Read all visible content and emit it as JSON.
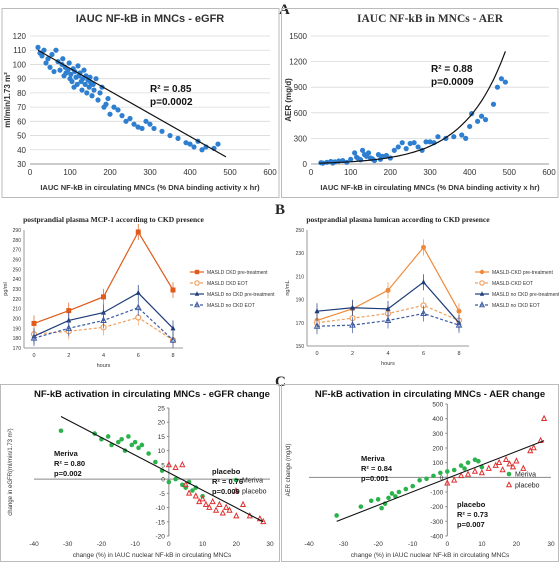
{
  "panel_labels": [
    "A",
    "B",
    "C"
  ],
  "chart_data": [
    {
      "id": "egfr",
      "type": "scatter",
      "title": "IAUC NF-kB in MNCs - eGFR",
      "xlabel": "IAUC NF-kB in circulating MNCs (% DNA binding activity x hr)",
      "ylabel": "ml/min/1.73 m²",
      "xlim": [
        0,
        600
      ],
      "ylim": [
        30,
        120
      ],
      "xticks": [
        0,
        100,
        200,
        300,
        400,
        500,
        600
      ],
      "yticks": [
        30,
        40,
        50,
        60,
        70,
        80,
        90,
        100,
        110,
        120
      ],
      "grid": true,
      "color": "#2f7fd1",
      "annotation": [
        "R² = 0.85",
        "p=0.0002"
      ],
      "trendline": {
        "x": [
          20,
          490
        ],
        "y": [
          110,
          35
        ]
      },
      "points": [
        [
          20,
          112
        ],
        [
          25,
          108
        ],
        [
          30,
          106
        ],
        [
          35,
          110
        ],
        [
          40,
          101
        ],
        [
          45,
          104
        ],
        [
          50,
          98
        ],
        [
          55,
          107
        ],
        [
          60,
          95
        ],
        [
          65,
          110
        ],
        [
          70,
          102
        ],
        [
          75,
          96
        ],
        [
          80,
          100
        ],
        [
          82,
          104
        ],
        [
          85,
          92
        ],
        [
          88,
          98
        ],
        [
          90,
          94
        ],
        [
          95,
          96
        ],
        [
          98,
          101
        ],
        [
          100,
          90
        ],
        [
          102,
          93
        ],
        [
          105,
          88
        ],
        [
          108,
          97
        ],
        [
          110,
          84
        ],
        [
          112,
          95
        ],
        [
          115,
          91
        ],
        [
          118,
          86
        ],
        [
          120,
          99
        ],
        [
          122,
          92
        ],
        [
          125,
          94
        ],
        [
          128,
          88
        ],
        [
          130,
          82
        ],
        [
          132,
          90
        ],
        [
          135,
          96
        ],
        [
          138,
          86
        ],
        [
          140,
          92
        ],
        [
          142,
          80
        ],
        [
          145,
          89
        ],
        [
          148,
          84
        ],
        [
          150,
          91
        ],
        [
          152,
          87
        ],
        [
          155,
          78
        ],
        [
          158,
          86
        ],
        [
          160,
          82
        ],
        [
          165,
          90
        ],
        [
          170,
          75
        ],
        [
          175,
          80
        ],
        [
          180,
          84
        ],
        [
          185,
          70
        ],
        [
          190,
          72
        ],
        [
          195,
          76
        ],
        [
          200,
          65
        ],
        [
          210,
          70
        ],
        [
          220,
          68
        ],
        [
          230,
          64
        ],
        [
          240,
          60
        ],
        [
          250,
          62
        ],
        [
          260,
          58
        ],
        [
          270,
          56
        ],
        [
          280,
          55
        ],
        [
          290,
          60
        ],
        [
          300,
          58
        ],
        [
          310,
          55
        ],
        [
          330,
          53
        ],
        [
          350,
          50
        ],
        [
          370,
          48
        ],
        [
          390,
          45
        ],
        [
          400,
          44
        ],
        [
          410,
          42
        ],
        [
          420,
          46
        ],
        [
          430,
          40
        ],
        [
          440,
          42
        ],
        [
          460,
          41
        ],
        [
          470,
          44
        ]
      ]
    },
    {
      "id": "aer",
      "type": "scatter",
      "title": "IAUC NF-kB in MNCs - AER",
      "xlabel": "IAUC NF-kB in circulating MNCs (% DNA binding activity x hr)",
      "ylabel": "AER (mg/d)",
      "xlim": [
        0,
        600
      ],
      "ylim": [
        0,
        1500
      ],
      "xticks": [
        0,
        100,
        200,
        300,
        400,
        500,
        600
      ],
      "yticks": [
        0,
        300,
        600,
        900,
        1200,
        1500
      ],
      "grid": true,
      "color": "#2f7fd1",
      "annotation": [
        "R² = 0.88",
        "p=0.0009"
      ],
      "points": [
        [
          25,
          15
        ],
        [
          30,
          10
        ],
        [
          40,
          20
        ],
        [
          50,
          30
        ],
        [
          55,
          12
        ],
        [
          60,
          25
        ],
        [
          70,
          35
        ],
        [
          80,
          40
        ],
        [
          90,
          20
        ],
        [
          100,
          55
        ],
        [
          110,
          130
        ],
        [
          115,
          80
        ],
        [
          120,
          60
        ],
        [
          125,
          50
        ],
        [
          130,
          160
        ],
        [
          135,
          110
        ],
        [
          140,
          90
        ],
        [
          145,
          130
        ],
        [
          150,
          70
        ],
        [
          155,
          60
        ],
        [
          160,
          40
        ],
        [
          170,
          110
        ],
        [
          175,
          55
        ],
        [
          180,
          90
        ],
        [
          190,
          100
        ],
        [
          200,
          70
        ],
        [
          210,
          160
        ],
        [
          220,
          200
        ],
        [
          230,
          250
        ],
        [
          240,
          180
        ],
        [
          250,
          240
        ],
        [
          260,
          250
        ],
        [
          270,
          200
        ],
        [
          280,
          160
        ],
        [
          290,
          260
        ],
        [
          300,
          260
        ],
        [
          310,
          250
        ],
        [
          320,
          320
        ],
        [
          340,
          300
        ],
        [
          360,
          320
        ],
        [
          380,
          340
        ],
        [
          390,
          300
        ],
        [
          400,
          440
        ],
        [
          405,
          590
        ],
        [
          420,
          500
        ],
        [
          430,
          560
        ],
        [
          440,
          520
        ],
        [
          460,
          700
        ],
        [
          470,
          900
        ],
        [
          480,
          1000
        ],
        [
          490,
          960
        ]
      ]
    },
    {
      "id": "mcp1",
      "type": "line",
      "title": "postprandial plasma MCP-1  according to CKD presence",
      "xlabel": "hours",
      "ylabel": "pg/ml",
      "x": [
        0,
        2,
        4,
        6,
        8
      ],
      "ylim": [
        170,
        290
      ],
      "yticks": [
        170,
        180,
        190,
        200,
        210,
        220,
        230,
        240,
        250,
        260,
        270,
        280,
        290
      ],
      "series": [
        {
          "name": "MASLD CKD pre-treatment",
          "values": [
            195,
            208,
            222,
            288,
            229
          ],
          "color": "#e05a1a",
          "marker": "square",
          "dashed": false
        },
        {
          "name": "MASLD CKD EOT",
          "values": [
            184,
            187,
            191,
            201,
            178
          ],
          "color": "#f0a060",
          "marker": "circle-open",
          "dashed": true
        },
        {
          "name": "MASLD no CKD pre-treatment",
          "values": [
            182,
            198,
            206,
            226,
            190
          ],
          "color": "#1f3d7a",
          "marker": "triangle",
          "dashed": false
        },
        {
          "name": "MASLD no CKD EOT",
          "values": [
            180,
            190,
            198,
            211,
            178
          ],
          "color": "#3b5aa0",
          "marker": "triangle-open",
          "dashed": true
        }
      ]
    },
    {
      "id": "lumican",
      "type": "line",
      "title": "postprandial plasma lumican according to CKD presence",
      "xlabel": "hours",
      "ylabel": "ng/mL",
      "x": [
        0,
        2,
        4,
        6,
        8
      ],
      "ylim": [
        150,
        250
      ],
      "yticks": [
        150,
        170,
        190,
        210,
        230,
        250
      ],
      "series": [
        {
          "name": "MASLD-CKD pre-treatment",
          "values": [
            172,
            182,
            198,
            235,
            180
          ],
          "color": "#f08a3a",
          "marker": "circle",
          "dashed": false
        },
        {
          "name": "MASLD-CKD EOT",
          "values": [
            170,
            174,
            178,
            185,
            172
          ],
          "color": "#f0a060",
          "marker": "circle-open",
          "dashed": true
        },
        {
          "name": "MASLD no CKD pre-treatment",
          "values": [
            180,
            183,
            182,
            205,
            170
          ],
          "color": "#1f3d7a",
          "marker": "triangle",
          "dashed": false
        },
        {
          "name": "MASLD no CKD EOT",
          "values": [
            167,
            168,
            172,
            178,
            168
          ],
          "color": "#3b5aa0",
          "marker": "triangle-open",
          "dashed": true
        }
      ]
    },
    {
      "id": "nfkb_egfr",
      "type": "scatter",
      "title": "NF-kB activation in circulating MNCs - eGFR change",
      "xlabel": "change (%)  in IAUC nuclear NF-kB in circulating MNCs",
      "ylabel": "change in eGFR(ml/min/1.73 m²)",
      "xlim": [
        -40,
        30
      ],
      "ylim": [
        -20,
        25
      ],
      "xticks": [
        -40,
        -30,
        -20,
        -10,
        0,
        10,
        20,
        30
      ],
      "yticks": [
        -20,
        -15,
        -10,
        -5,
        0,
        5,
        10,
        15,
        20,
        25
      ],
      "annotations": [
        {
          "lines": [
            "Meriva",
            "R² = 0.80",
            "p=0.002"
          ]
        },
        {
          "lines": [
            "placebo",
            "R² = 0.76",
            "p=0.009"
          ]
        }
      ],
      "trendline": {
        "x": [
          -32,
          28
        ],
        "y": [
          22,
          -15
        ]
      },
      "series": [
        {
          "name": "Meriva",
          "color": "#2bb24c",
          "marker": "circle",
          "points": [
            [
              -32,
              17
            ],
            [
              -22,
              16
            ],
            [
              -20,
              14
            ],
            [
              -18,
              15
            ],
            [
              -17,
              12
            ],
            [
              -15,
              13
            ],
            [
              -14,
              14
            ],
            [
              -13,
              10
            ],
            [
              -12,
              15
            ],
            [
              -11,
              12
            ],
            [
              -10,
              13
            ],
            [
              -9,
              11
            ],
            [
              -8,
              12
            ],
            [
              -6,
              9
            ],
            [
              -4,
              6
            ],
            [
              -2,
              3
            ],
            [
              0,
              -1
            ],
            [
              2,
              0
            ],
            [
              4,
              -2
            ],
            [
              5,
              -3
            ],
            [
              6,
              -1
            ],
            [
              7,
              -4
            ],
            [
              8,
              -3
            ],
            [
              10,
              -6
            ]
          ]
        },
        {
          "name": "placebo",
          "color": "#e03030",
          "marker": "triangle-open",
          "points": [
            [
              0,
              5
            ],
            [
              2,
              4
            ],
            [
              4,
              5
            ],
            [
              5,
              -2
            ],
            [
              6,
              -5
            ],
            [
              8,
              -6
            ],
            [
              9,
              -8
            ],
            [
              10,
              -7
            ],
            [
              11,
              -9
            ],
            [
              12,
              -10
            ],
            [
              13,
              -8
            ],
            [
              14,
              -11
            ],
            [
              15,
              -9
            ],
            [
              16,
              -12
            ],
            [
              17,
              -10
            ],
            [
              18,
              -11
            ],
            [
              20,
              -13
            ],
            [
              22,
              -9
            ],
            [
              24,
              -13
            ],
            [
              27,
              -14
            ],
            [
              28,
              -15
            ]
          ]
        }
      ]
    },
    {
      "id": "nfkb_aer",
      "type": "scatter",
      "title": "NF-kB activation in circulating MNCs - AER change",
      "xlabel": "change (%)  in IAUC nuclear NF-kB in circulating MNCs",
      "ylabel": "AER change (mg/d)",
      "xlim": [
        -40,
        30
      ],
      "ylim": [
        -400,
        500
      ],
      "xticks": [
        -40,
        -30,
        -20,
        -10,
        0,
        10,
        20,
        30
      ],
      "yticks": [
        -400,
        -300,
        -200,
        -100,
        0,
        100,
        200,
        300,
        400,
        500
      ],
      "annotations": [
        {
          "lines": [
            "Meriva",
            "R² = 0.84",
            "p=0.001"
          ]
        },
        {
          "lines": [
            "placebo",
            "R² = 0.73",
            "p=0.007"
          ]
        }
      ],
      "trendline": {
        "x": [
          -32,
          28
        ],
        "y": [
          -300,
          250
        ]
      },
      "series": [
        {
          "name": "Meriva",
          "color": "#2bb24c",
          "marker": "circle",
          "points": [
            [
              -32,
              -260
            ],
            [
              -25,
              -200
            ],
            [
              -22,
              -160
            ],
            [
              -20,
              -150
            ],
            [
              -19,
              -210
            ],
            [
              -18,
              -180
            ],
            [
              -17,
              -140
            ],
            [
              -16,
              -110
            ],
            [
              -15,
              -130
            ],
            [
              -14,
              -100
            ],
            [
              -12,
              -80
            ],
            [
              -10,
              -60
            ],
            [
              -8,
              -20
            ],
            [
              -6,
              -10
            ],
            [
              -4,
              10
            ],
            [
              -2,
              30
            ],
            [
              0,
              40
            ],
            [
              2,
              50
            ],
            [
              4,
              80
            ],
            [
              5,
              60
            ],
            [
              6,
              100
            ],
            [
              8,
              120
            ],
            [
              9,
              110
            ],
            [
              10,
              70
            ]
          ]
        },
        {
          "name": "placebo",
          "color": "#e03030",
          "marker": "triangle-open",
          "points": [
            [
              0,
              -40
            ],
            [
              2,
              -20
            ],
            [
              4,
              10
            ],
            [
              6,
              20
            ],
            [
              8,
              40
            ],
            [
              10,
              30
            ],
            [
              12,
              60
            ],
            [
              14,
              80
            ],
            [
              15,
              100
            ],
            [
              16,
              50
            ],
            [
              17,
              120
            ],
            [
              18,
              90
            ],
            [
              19,
              70
            ],
            [
              20,
              110
            ],
            [
              22,
              60
            ],
            [
              24,
              180
            ],
            [
              25,
              200
            ],
            [
              27,
              250
            ],
            [
              28,
              400
            ]
          ]
        }
      ]
    }
  ]
}
